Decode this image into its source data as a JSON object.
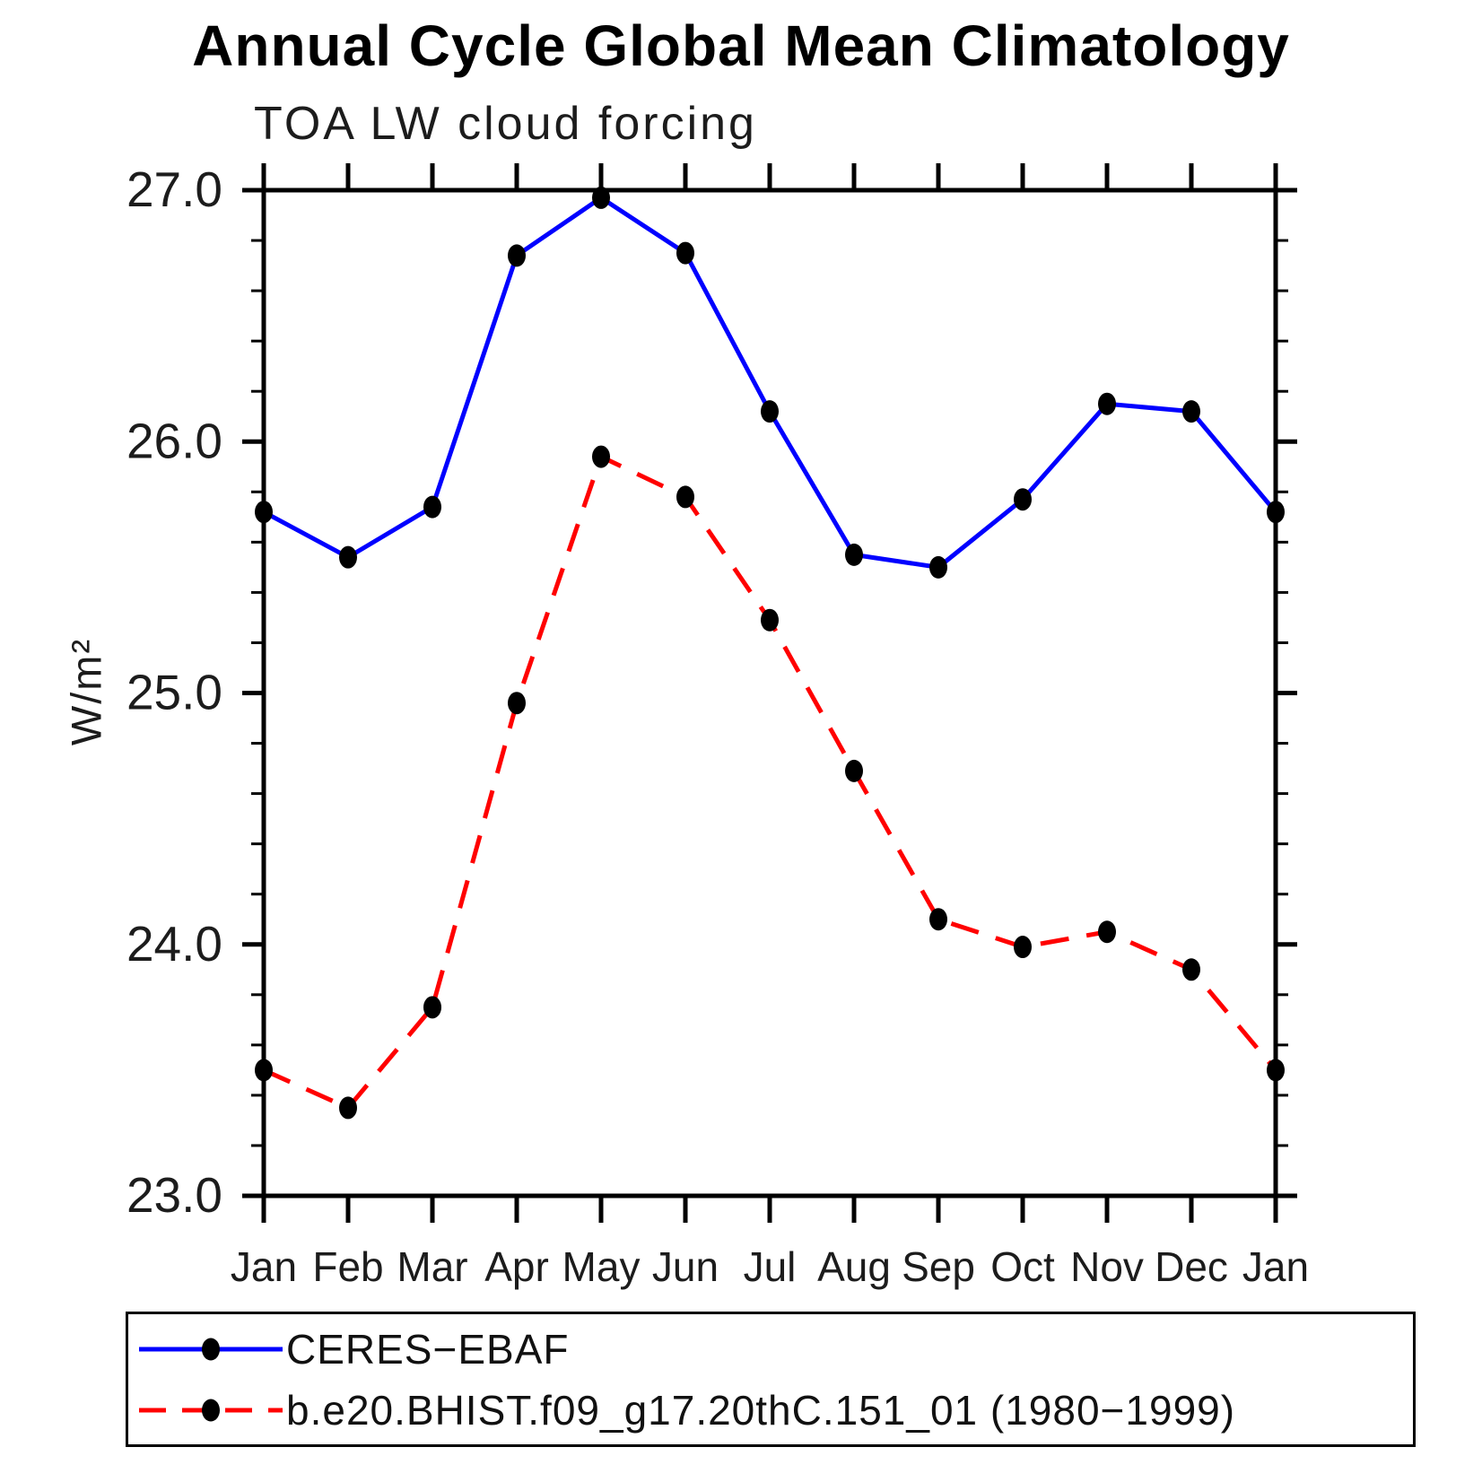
{
  "title": "Annual Cycle Global Mean Climatology",
  "subtitle": "TOA LW cloud forcing",
  "ylabel": "W/m²",
  "chart_data": {
    "type": "line",
    "categories": [
      "Jan",
      "Feb",
      "Mar",
      "Apr",
      "May",
      "Jun",
      "Jul",
      "Aug",
      "Sep",
      "Oct",
      "Nov",
      "Dec",
      "Jan"
    ],
    "series": [
      {
        "name": "CERES−EBAF",
        "color": "#0000ff",
        "line_style": "solid",
        "marker": "filled-circle",
        "marker_color": "#000000",
        "values": [
          25.72,
          25.54,
          25.74,
          26.74,
          26.97,
          26.75,
          26.12,
          25.55,
          25.5,
          25.77,
          26.15,
          26.12,
          25.72
        ]
      },
      {
        "name": "b.e20.BHIST.f09_g17.20thC.151_01 (1980−1999)",
        "color": "#ff0000",
        "line_style": "dashed",
        "marker": "filled-circle",
        "marker_color": "#000000",
        "values": [
          23.5,
          23.35,
          23.75,
          24.96,
          25.94,
          25.78,
          25.29,
          24.69,
          24.1,
          23.99,
          24.05,
          23.9,
          23.5
        ]
      }
    ],
    "xlabel": "",
    "ylabel": "W/m²",
    "ylim": [
      23.0,
      27.0
    ],
    "y_major_ticks": [
      23.0,
      24.0,
      25.0,
      26.0,
      27.0
    ],
    "y_tick_labels": [
      "23.0",
      "24.0",
      "25.0",
      "26.0",
      "27.0"
    ],
    "y_minor_step": 0.2,
    "grid": false,
    "legend_position": "bottom",
    "axis_color": "#000000"
  }
}
